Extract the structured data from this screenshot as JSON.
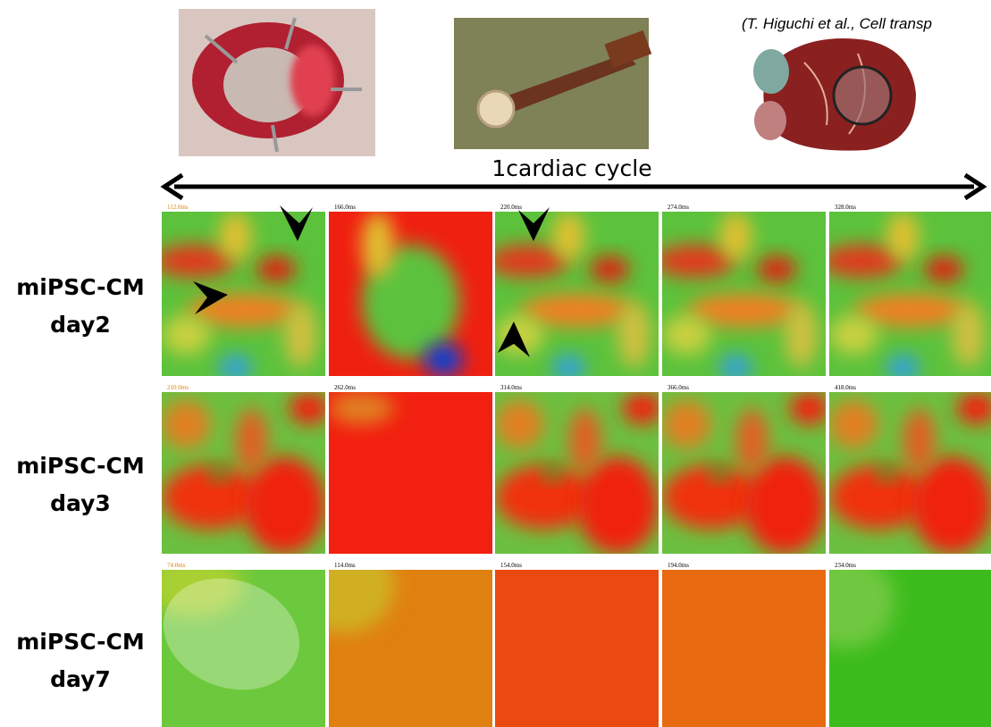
{
  "citation": "(T. Higuchi et al., Cell transp",
  "cycle_label": "1cardiac cycle",
  "rows": [
    {
      "label_line1": "miPSC-CM",
      "label_line2": "day2",
      "times": [
        "112.0ms",
        "166.0ms",
        "220.0ms",
        "274.0ms",
        "328.0ms"
      ]
    },
    {
      "label_line1": "miPSC-CM",
      "label_line2": "day3",
      "times": [
        "210.0ms",
        "262.0ms",
        "314.0ms",
        "366.0ms",
        "418.0ms"
      ]
    },
    {
      "label_line1": "miPSC-CM",
      "label_line2": "day7",
      "times": [
        "74.0ms",
        "114.0ms",
        "154.0ms",
        "194.0ms",
        "234.0ms"
      ]
    }
  ]
}
